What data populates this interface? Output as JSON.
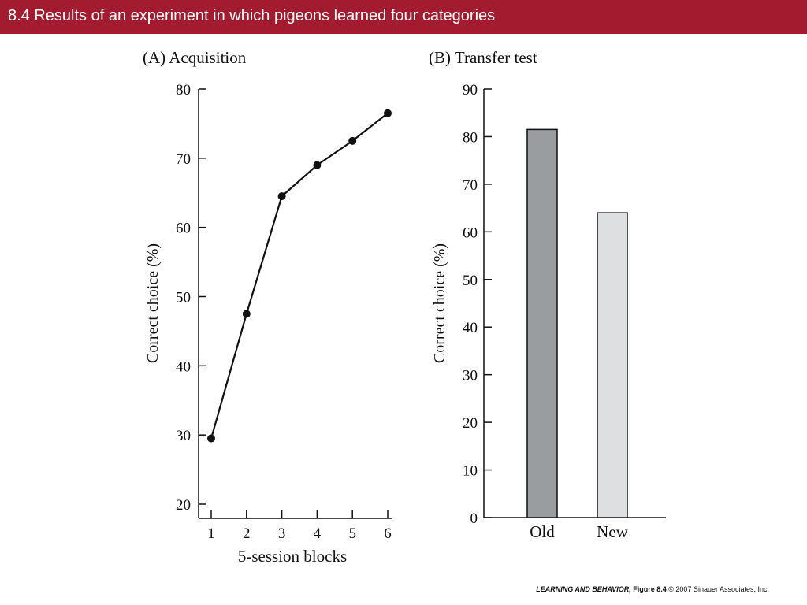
{
  "slide": {
    "title": "8.4  Results of an experiment in which pigeons learned four categories",
    "title_bar_color": "#a31b2e"
  },
  "credit": {
    "book": "LEARNING AND BEHAVIOR,",
    "figure": "Figure 8.4",
    "copyright": "© 2007 Sinauer Associates, Inc."
  },
  "chart_data": [
    {
      "type": "line",
      "panel_title": "(A)  Acquisition",
      "xlabel": "5-session blocks",
      "ylabel": "Correct choice (%)",
      "x": [
        1,
        2,
        3,
        4,
        5,
        6
      ],
      "values": [
        29.5,
        47.5,
        64.5,
        69,
        72.5,
        76.5
      ],
      "xlim": [
        1,
        6
      ],
      "ylim": [
        20,
        80
      ],
      "yticks": [
        20,
        30,
        40,
        50,
        60,
        70,
        80
      ],
      "xticks": [
        1,
        2,
        3,
        4,
        5,
        6
      ],
      "marker": "filled-circle",
      "line_color": "#111111",
      "grid": false
    },
    {
      "type": "bar",
      "panel_title": "(B)  Transfer test",
      "xlabel": "",
      "ylabel": "Correct choice (%)",
      "categories": [
        "Old",
        "New"
      ],
      "values": [
        81.5,
        64
      ],
      "bar_colors": [
        "#9a9d9f",
        "#dedfe0"
      ],
      "ylim": [
        0,
        90
      ],
      "yticks": [
        0,
        10,
        20,
        30,
        40,
        50,
        60,
        70,
        80,
        90
      ],
      "grid": false
    }
  ]
}
